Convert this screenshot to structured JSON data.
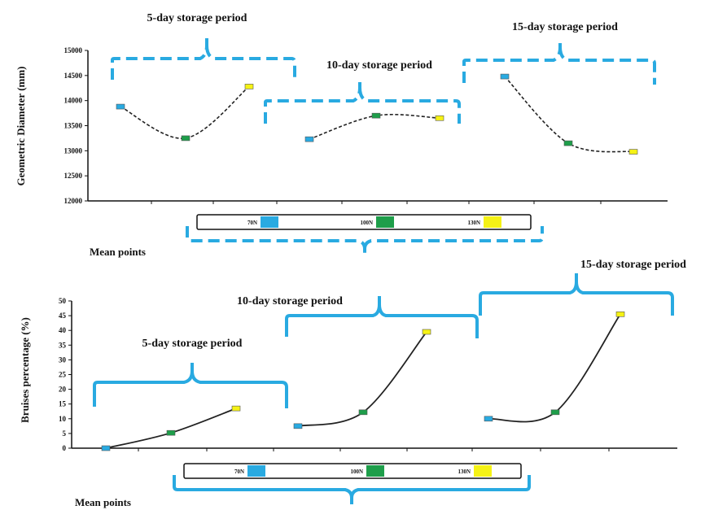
{
  "legend": {
    "items": [
      {
        "label": "70N",
        "color": "#29aae1"
      },
      {
        "label": "100N",
        "color": "#1e9e4a"
      },
      {
        "label": "130N",
        "color": "#f5f215"
      }
    ]
  },
  "bracket_color": "#29aae1",
  "chart_data": [
    {
      "type": "line",
      "ylabel": "Geometric Diameter (mm)",
      "ylim": [
        12000,
        15000
      ],
      "yticks": [
        12000,
        12500,
        13000,
        13500,
        14000,
        14500,
        15000
      ],
      "xlabel": "Mean points",
      "series": [
        {
          "name": "5-day storage period",
          "values": [
            13880,
            13250,
            14280
          ]
        },
        {
          "name": "10-day storage period",
          "values": [
            13230,
            13700,
            13650
          ]
        },
        {
          "name": "15-day storage period",
          "values": [
            14480,
            13150,
            12980
          ]
        }
      ]
    },
    {
      "type": "line",
      "ylabel": "Bruises percentage (%)",
      "ylim": [
        0,
        50
      ],
      "yticks": [
        0,
        5,
        10,
        15,
        20,
        25,
        30,
        35,
        40,
        45,
        50
      ],
      "xlabel": "Mean points",
      "series": [
        {
          "name": "5-day storage period",
          "values": [
            0,
            5.2,
            13.5
          ]
        },
        {
          "name": "10-day storage period",
          "values": [
            7.5,
            12.2,
            39.5
          ]
        },
        {
          "name": "15-day storage period",
          "values": [
            10,
            12.2,
            45.5
          ]
        }
      ]
    }
  ]
}
